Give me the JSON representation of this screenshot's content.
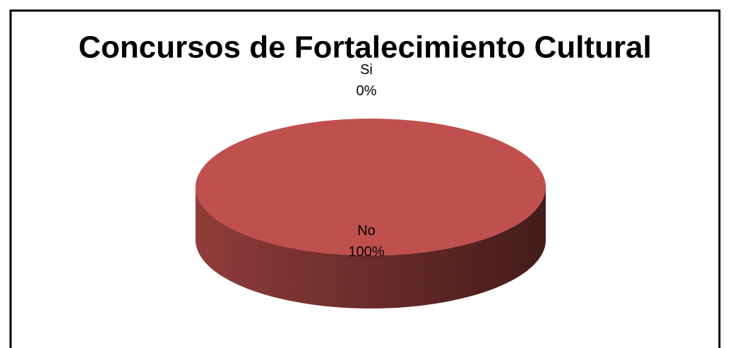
{
  "chart_data": {
    "type": "pie",
    "title": "Concursos de Fortalecimiento Cultural",
    "categories": [
      "Si",
      "No"
    ],
    "values": [
      0,
      100
    ],
    "value_labels": [
      "0%",
      "100%"
    ],
    "colors": [
      "#4f81bd",
      "#c0504d"
    ],
    "three_d": true
  }
}
